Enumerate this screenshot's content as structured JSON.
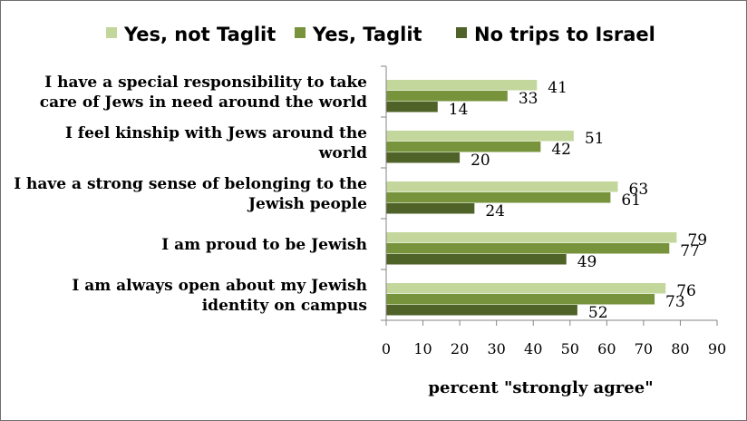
{
  "chart_data": {
    "type": "bar",
    "orientation": "horizontal",
    "categories": [
      [
        "I have a special responsibility to take",
        "care of Jews in need around the world"
      ],
      [
        "I feel kinship with Jews around the",
        "world"
      ],
      [
        "I have a strong sense of belonging to the",
        "Jewish people"
      ],
      [
        "I am proud to be Jewish"
      ],
      [
        "I am always open about my Jewish",
        "identity on campus"
      ]
    ],
    "series": [
      {
        "name": "Yes, not Taglit",
        "color": "#c3d69b",
        "values": [
          41,
          51,
          63,
          79,
          76
        ]
      },
      {
        "name": "Yes, Taglit",
        "color": "#77933c",
        "values": [
          33,
          42,
          61,
          77,
          73
        ]
      },
      {
        "name": "No trips to Israel",
        "color": "#4f6228",
        "values": [
          14,
          20,
          24,
          49,
          52
        ]
      }
    ],
    "xlabel": "percent \"strongly agree\"",
    "ylabel": "",
    "xlim": [
      0,
      90
    ],
    "xticks": [
      0,
      10,
      20,
      30,
      40,
      50,
      60,
      70,
      80,
      90
    ],
    "legend_position": "top",
    "grid": false,
    "data_labels": true
  }
}
